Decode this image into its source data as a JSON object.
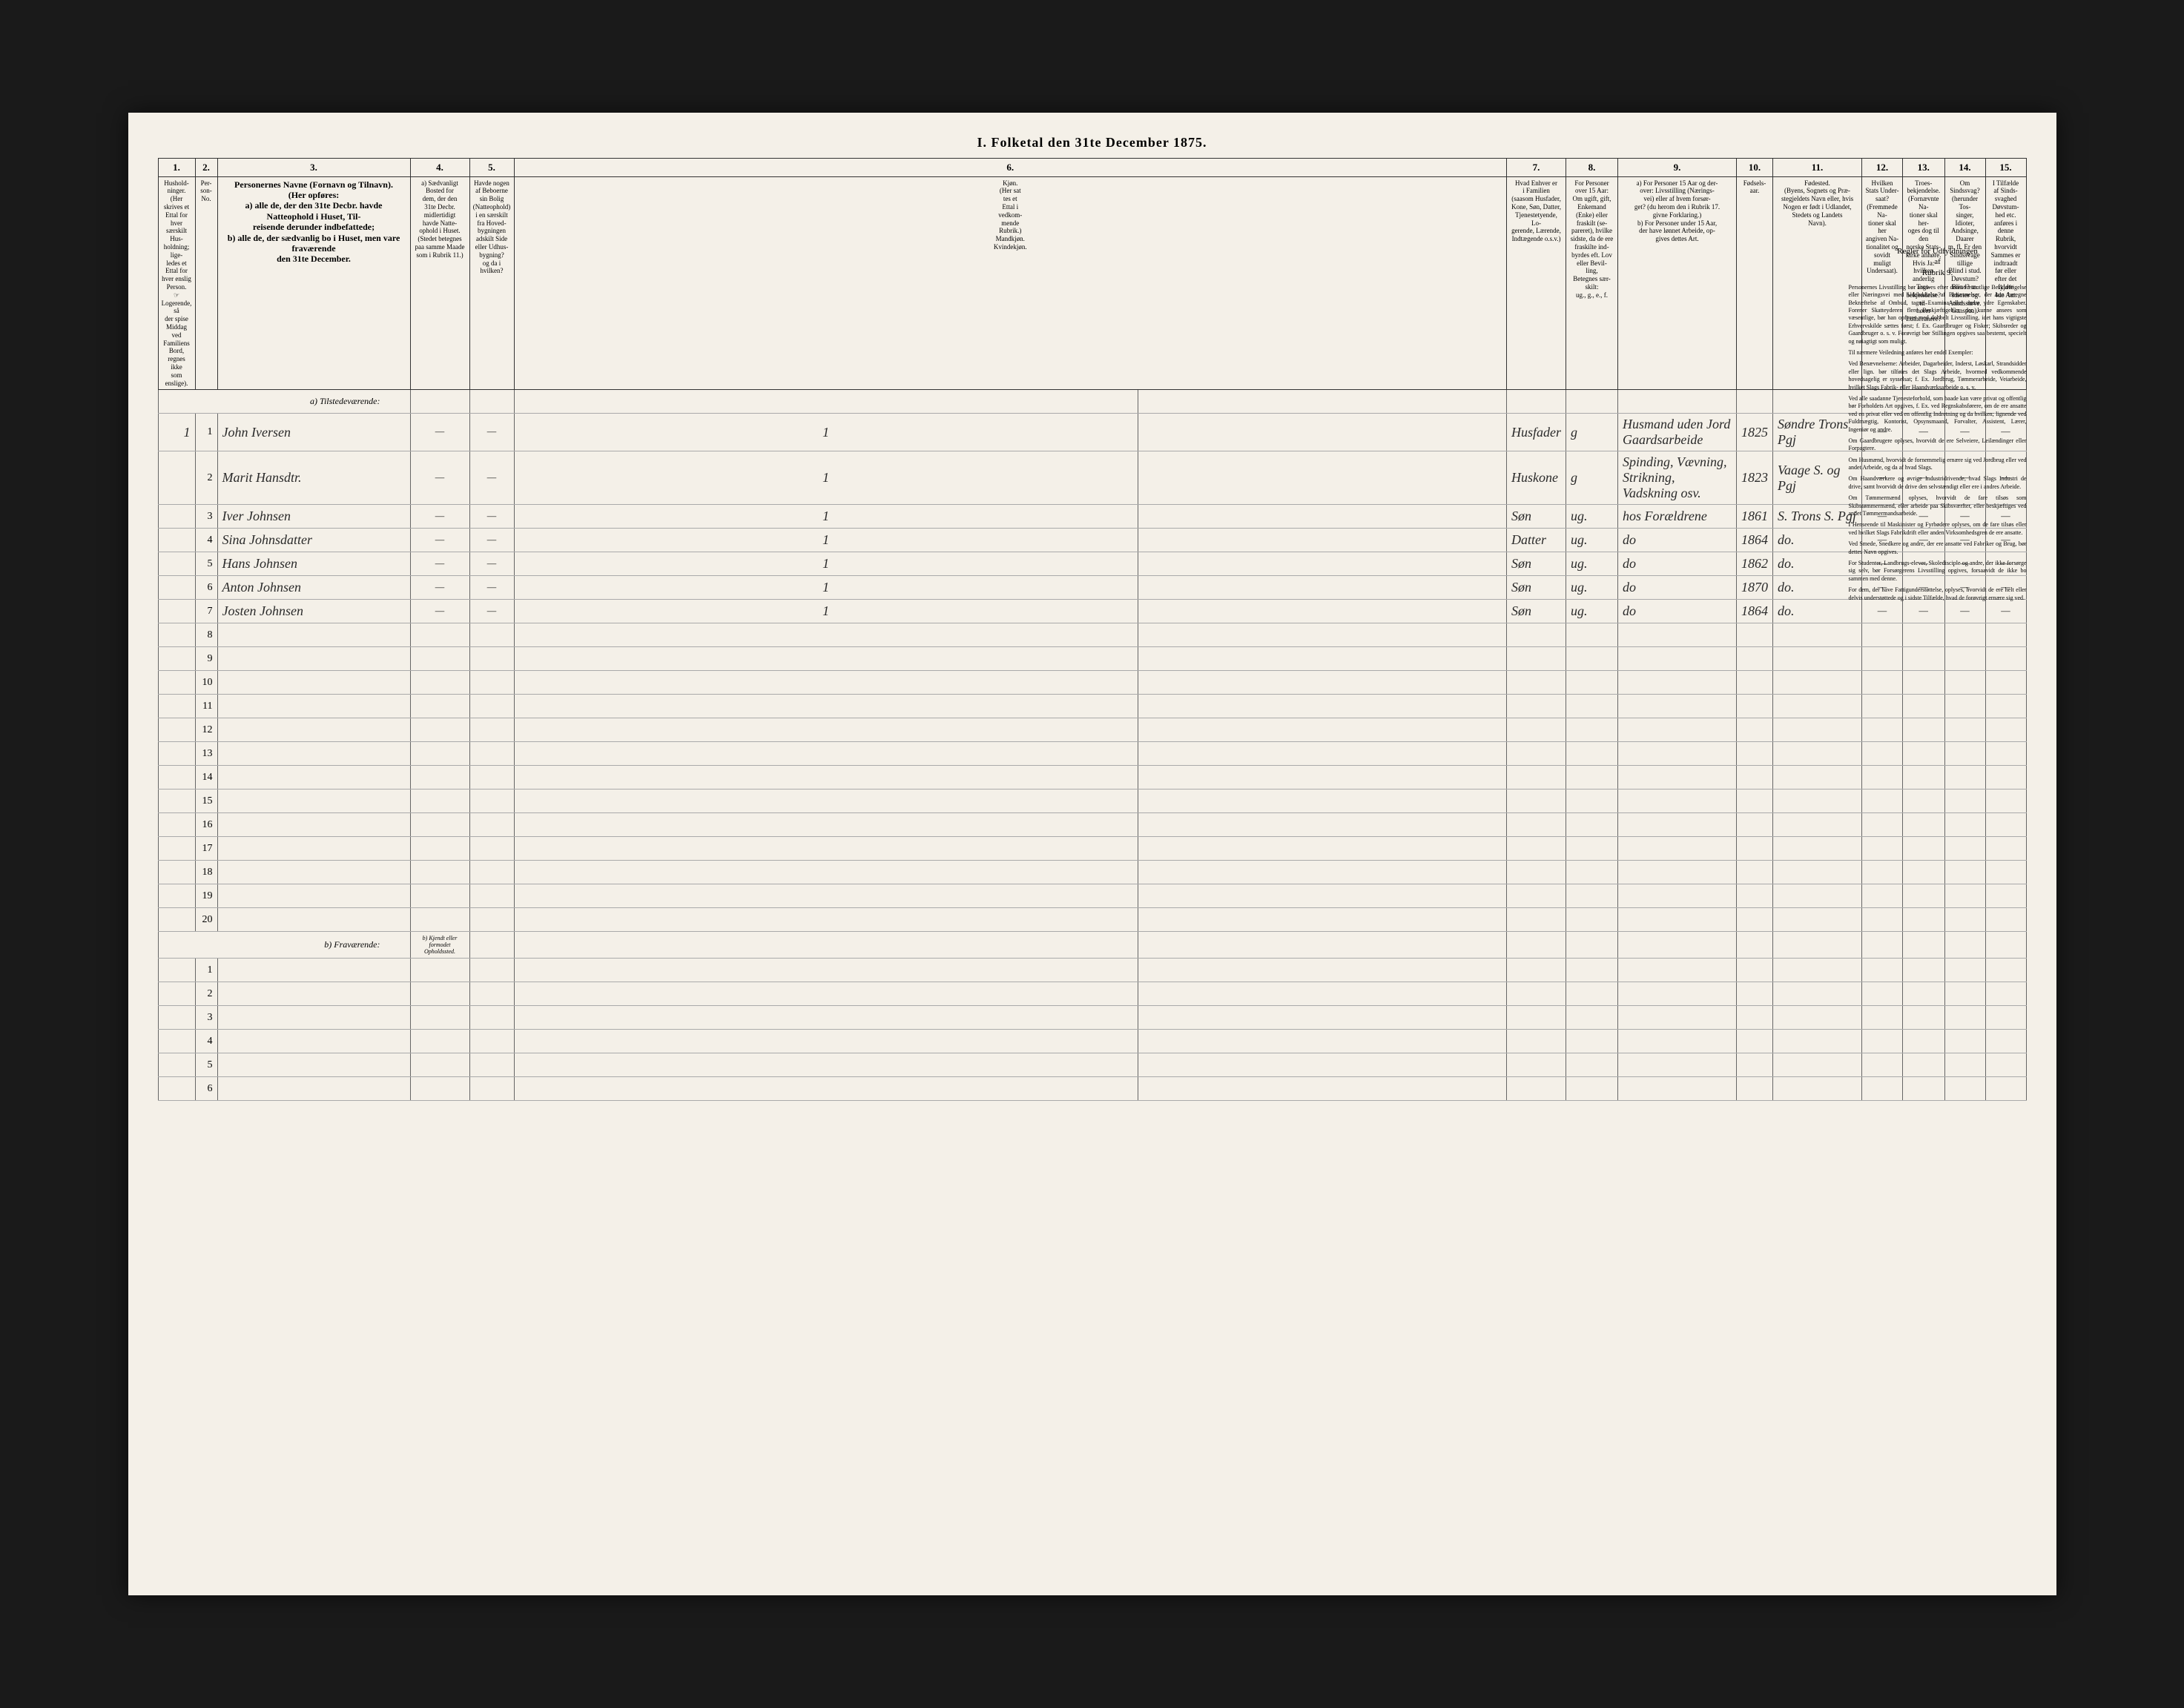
{
  "title": "I. Folketal den 31te December 1875.",
  "columns": {
    "nums": [
      "1.",
      "2.",
      "3.",
      "4.",
      "5.",
      "6.",
      "7.",
      "8.",
      "9.",
      "10.",
      "11.",
      "12.",
      "13.",
      "14.",
      "15."
    ],
    "headers": {
      "c1": "Hushold-\nninger.\n(Her skrives et\nEttal for hver\nsærskilt Hus-\nholdning; lige-\nledes et Ettal for\nhver enslig\nPerson.\n☞ Logerende, så\nder spise Middag\nved Familiens\nBord, regnes ikke\nsom enslige).",
      "c2": "Per-\nson-\nNo.",
      "c3": "Personernes Navne (Fornavn og Tilnavn).\n(Her opføres:\na) alle de, der den 31te Decbr. havde Natteophold i Huset, Til-\nreisende derunder indbefattede;\nb) alle de, der sædvanlig bo i Huset, men vare fraværende\nden 31te December.",
      "c4": "a) Sædvanligt\nBosted for\ndem, der den\n31te Decbr.\nmidlertidigt\nhavde Natte-\nophold i Huset.\n(Stedet betegnes\npaa samme Maade\nsom i Rubrik 11.)",
      "c5": "Havde nogen\naf Beboerne\nsin Bolig\n(Natteophold)\ni en særskilt\nfra Hoved-\nbygningen\nadskilt Side\neller Udhus-\nbygning?\nog da i\nhvilken?",
      "c6": "Kjøn.\n(Her sat\ntes et\nEttal i\nvedkom-\nmende\nRubrik.)\nMandkjøn.\nKvindekjøn.",
      "c7": "Hvad Enhver er\ni Familien\n(saasom Husfader,\nKone, Søn, Datter,\nTjenestetyende, Lo-\ngerende, Lærende,\nIndtægende o.s.v.)",
      "c8": "For Personer\nover 15 Aar:\nOm ugift, gift,\nEnkemand\n(Enke) eller\nfraskilt (se-\npareret), hvilke\nsidste, da de ere\nfraskilte ind-\nbyrdes eft. Lov\neller Bevil-\nling,\nBetegnes sær-\nskilt:\nug., g., e., f.",
      "c9": "a) For Personer 15 Aar og der-\nover: Livsstilling (Nærings-\nvei) eller af hvem forsør-\nget? (du herom den i Rubrik 17.\ngivne Forklaring.)\nb) For Personer under 15 Aar,\nder have lønnet Arbeide, op-\ngives dettes Art.",
      "c10": "Fødsels-\naar.",
      "c11": "Fødested.\n(Byens, Sognets og Præ-\nstegjeldets Navn eller, hvis\nNogen er født i Udlandet,\nStedets og Landets\nNavn).",
      "c12": "Hvilken\nStats Under-\nsaat?\n(Fremmede Na-\ntioner skal her\nangiven Na-\ntionalitet og\nsovidt muligt\nUndersaat).",
      "c13": "Troes-\nbekjendelse.\n(Fornævnte Na-\ntioner skal her-\noges dog til den\nnorske Stats-\nkirke anhøre.\nHvis Ja: hvilken\nanderlig Tros-\nbekjendelse? til-\nhører Lutheranere?",
      "c14": "Om\nSindssvag?\n(herunder Tos-\nsinger, Idioter,\nAndsinge, Daarer\nm. fl. Er den\nSindssvage tillige\nBlind i stud.\nDøvstum?\nBlind? m.\nIdioter og\nAandssløve.\nGanspaa).",
      "c15": "I Tilfælde\naf Sinds-\nsvaghed\nDøvstum-\nhed etc.\nanføres i\ndenne\nRubrik,\nhvorvidt\nSammes er\nindtraadt\nfør eller\nefter det\nfyldte\n4de Aar."
    }
  },
  "sections": {
    "present": "a) Tilstedeværende:",
    "absent": "b) Fraværende:",
    "absent_note": "b) Kjendt eller\nformodet\nOpholdssted."
  },
  "rows": [
    {
      "hh": "1",
      "pn": "1",
      "name": "John Iversen",
      "c4": "—",
      "c5": "—",
      "sex": "1",
      "rel": "Husfader",
      "civ": "g",
      "occ": "Husmand uden Jord Gaardsarbeide",
      "year": "1825",
      "birthplace": "Søndre Trons Pgj",
      "c12": "—",
      "c13": "—",
      "c14": "—",
      "c15": "—"
    },
    {
      "hh": "",
      "pn": "2",
      "name": "Marit Hansdtr.",
      "c4": "—",
      "c5": "—",
      "sex": "1",
      "rel": "Huskone",
      "civ": "g",
      "occ": "Spinding, Vævning, Strikning, Vadskning osv.",
      "year": "1823",
      "birthplace": "Vaage S. og Pgj",
      "c12": "—",
      "c13": "—",
      "c14": "—",
      "c15": "—"
    },
    {
      "hh": "",
      "pn": "3",
      "name": "Iver Johnsen",
      "c4": "—",
      "c5": "—",
      "sex": "1",
      "rel": "Søn",
      "civ": "ug.",
      "occ": "hos Forældrene",
      "year": "1861",
      "birthplace": "S. Trons S. Pgj",
      "c12": "—",
      "c13": "—",
      "c14": "—",
      "c15": "—"
    },
    {
      "hh": "",
      "pn": "4",
      "name": "Sina Johnsdatter",
      "c4": "—",
      "c5": "—",
      "sex": "1",
      "rel": "Datter",
      "civ": "ug.",
      "occ": "do",
      "year": "1864",
      "birthplace": "do.",
      "c12": "—",
      "c13": "—",
      "c14": "—",
      "c15": "—"
    },
    {
      "hh": "",
      "pn": "5",
      "name": "Hans Johnsen",
      "c4": "—",
      "c5": "—",
      "sex": "1",
      "rel": "Søn",
      "civ": "ug.",
      "occ": "do",
      "year": "1862",
      "birthplace": "do.",
      "c12": "—",
      "c13": "—",
      "c14": "—",
      "c15": "—"
    },
    {
      "hh": "",
      "pn": "6",
      "name": "Anton Johnsen",
      "c4": "—",
      "c5": "—",
      "sex": "1",
      "rel": "Søn",
      "civ": "ug.",
      "occ": "do",
      "year": "1870",
      "birthplace": "do.",
      "c12": "—",
      "c13": "—",
      "c14": "—",
      "c15": "—"
    },
    {
      "hh": "",
      "pn": "7",
      "name": "Josten Johnsen",
      "c4": "—",
      "c5": "—",
      "sex": "1",
      "rel": "Søn",
      "civ": "ug.",
      "occ": "do",
      "year": "1864",
      "birthplace": "do.",
      "c12": "—",
      "c13": "—",
      "c14": "—",
      "c15": "—"
    }
  ],
  "empty_present_rows": [
    8,
    9,
    10,
    11,
    12,
    13,
    14,
    15,
    16,
    17,
    18,
    19,
    20
  ],
  "empty_absent_rows": [
    1,
    2,
    3,
    4,
    5,
    6
  ],
  "side": {
    "header": "Regler for Udfyldningen\naf\nRubrik 9.",
    "paragraphs": [
      "Personernes Livsstilling bør angives efter deres væsentlige Beskjæftigelse eller Næringsvei med Udelukkelse af Benævnelser, der kun betegne Bekræftelse af Ombud, tagne Examina eller andre ydre Egenskaber. Forener Skatteyderen flere Beskjæftigelser, der kunne ansees som væsentlige, bør han opføres med dobbelt Livsstilling, idet hans vigtigste Erhvervskilde sættes først; f. Ex. Gaardbruger og Fisker; Skibsreder og Gaardbruger o. s. v. Forøvrigt bør Stillingen opgives saa bestemt, specielt og nøiagtigt som muligt.",
      "Til nærmere Veiledning anføres her endel Exempler:",
      "Ved Benævnelserne: Arbeider, Dagarbeider, Inderst, Løskarl, Strandsidder eller lign. bør tilføies det Slags Arbeide, hvormed vedkommende hovedsagelig er sysselsat; f. Ex. Jordbrug, Tømmerarbeide, Veiarbeide, hvilket Slags Fabrik- eller Haandværksarbeide o. s. v.",
      "Ved alle saadanne Tjenesteforhold, som baade kan være privat og offentlig bør Forholdets Art opgives, f. Ex. ved Regnskabsførere, om de ere ansatte ved en privat eller ved en offentlig Indretning og da hvilken; lignende ved Fuldmægtig, Kontorist, Opsynsmaand, Forvalter, Assistent, Lærer, Ingeniør og andre.",
      "Om Gaardbrugere oplyses, hvorvidt de ere Selveiere, Leilændinger eller Forpagtere.",
      "Om Husmænd, hvorvidt de fornemmelig ernære sig ved Jordbrug eller ved andet Arbeide, og da af hvad Slags.",
      "Om Haandværkere og øvrige Industridrivende, hvad Slags Industri de drive, samt hvorvidt de drive den selvstændigt eller ere i andres Arbeide.",
      "Om Tømmermænd oplyses, hvorvidt de fare tilsøs som Skibstømmermænd, eller arbeide paa Skibsværfter, eller beskjæftiges ved andet Tømmermandsarbeide.",
      "I Henseende til Maskinister og Fyrbødere oplyses, om de fare tilsøs eller ved hvilket Slags Fabrikdrift eller anden Virksomhedsgren de ere ansatte.",
      "Ved Smede, Snedkere og andre, der ere ansatte ved Fabriker og Brug, bør dettes Navn opgives.",
      "For Studenter, Landbrugs-elever, Skoledisciple og andre, der ikke forsørge sig selv, bør Forsørgerens Livsstilling opgives, forsaavidt de ikke bo sammen med denne.",
      "For dem, der have Fattigunderstøttelse, oplyses, hvorvidt de ere helt eller delvis understøttede og i sidste Tilfælde, hvad de forøvrigt ernære sig ved."
    ]
  },
  "colors": {
    "page_bg": "#f4f0e8",
    "outer_bg": "#1a1a1a",
    "border": "#333333",
    "light_border": "#aaaaaa",
    "ink": "#2a2a2a"
  }
}
